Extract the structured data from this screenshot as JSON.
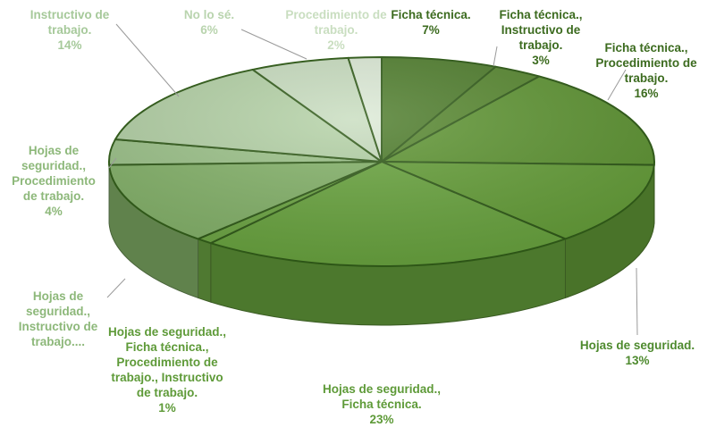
{
  "chart_data": {
    "type": "pie",
    "title": "",
    "slices": [
      {
        "label": "Ficha técnica.",
        "pct": "7%",
        "value": 7,
        "color": "#4e7d2b",
        "text_color": "#3c6b1f"
      },
      {
        "label": "Ficha técnica., Instructivo de trabajo.",
        "pct": "3%",
        "value": 3,
        "color": "#57882f",
        "text_color": "#3c6b1f"
      },
      {
        "label": "Ficha técnica., Procedimiento de trabajo.",
        "pct": "16%",
        "value": 16,
        "color": "#5f9633",
        "text_color": "#3c6b1f"
      },
      {
        "label": "Hojas de seguridad.",
        "pct": "13%",
        "value": 13,
        "color": "#66a039",
        "text_color": "#4e8a2e"
      },
      {
        "label": "Hojas de seguridad., Ficha técnica.",
        "pct": "23%",
        "value": 23,
        "color": "#6aa63f",
        "text_color": "#5e9a38"
      },
      {
        "label": "Hojas de seguridad., Ficha técnica., Procedimiento de trabajo., Instructivo de trabajo.",
        "pct": "1%",
        "value": 1,
        "color": "#6ea844",
        "text_color": "#5e9a38"
      },
      {
        "label": "Hojas de seguridad., Instructivo de trabajo....",
        "pct": "",
        "value": 13,
        "color": "#85b46a",
        "text_color": "#8db87a"
      },
      {
        "label": "Hojas de seguridad., Procedimiento de trabajo.",
        "pct": "4%",
        "value": 4,
        "color": "#9dc48a",
        "text_color": "#8db87a"
      },
      {
        "label": "Instructivo de trabajo.",
        "pct": "14%",
        "value": 14,
        "color": "#b4d2a6",
        "text_color": "#a6c99a"
      },
      {
        "label": "No lo sé.",
        "pct": "6%",
        "value": 6,
        "color": "#c8ddbf",
        "text_color": "#b9d4ae"
      },
      {
        "label": "Procedimiento de trabajo.",
        "pct": "2%",
        "value": 2,
        "color": "#dcead6",
        "text_color": "#c9dec0"
      }
    ]
  },
  "labels": [
    {
      "lines": [
        "Ficha técnica.",
        "7%"
      ]
    },
    {
      "lines": [
        "Ficha técnica.,",
        "Instructivo de",
        "trabajo.",
        "3%"
      ]
    },
    {
      "lines": [
        "Ficha técnica.,",
        "Procedimiento de",
        "trabajo.",
        "16%"
      ]
    },
    {
      "lines": [
        "Hojas de seguridad.",
        "13%"
      ]
    },
    {
      "lines": [
        "Hojas de seguridad.,",
        "Ficha técnica.",
        "23%"
      ]
    },
    {
      "lines": [
        "Hojas de seguridad.,",
        "Ficha técnica.,",
        "Procedimiento de",
        "trabajo., Instructivo",
        "de trabajo.",
        "1%"
      ]
    },
    {
      "lines": [
        "Hojas de",
        "seguridad.,",
        "Instructivo de",
        "trabajo...."
      ]
    },
    {
      "lines": [
        "Hojas de",
        "seguridad.,",
        "Procedimiento",
        "de trabajo.",
        "4%"
      ]
    },
    {
      "lines": [
        "Instructivo de",
        "trabajo.",
        "14%"
      ]
    },
    {
      "lines": [
        "No lo sé.",
        "6%"
      ]
    },
    {
      "lines": [
        "Procedimiento de",
        "trabajo.",
        "2%"
      ]
    }
  ]
}
